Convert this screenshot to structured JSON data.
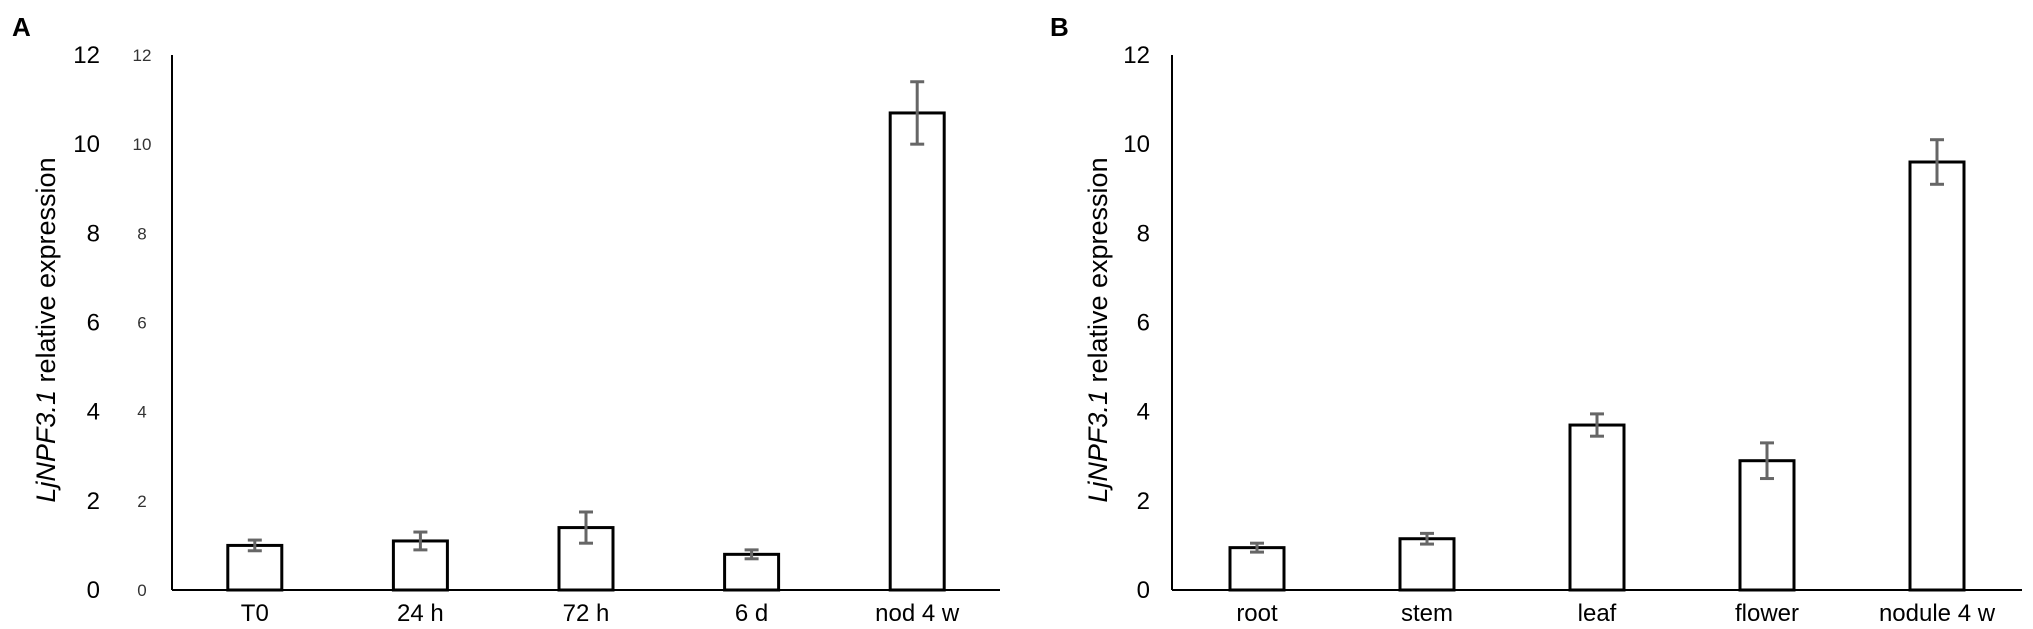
{
  "chart_data": [
    {
      "panel_label": "A",
      "type": "bar",
      "categories": [
        "T0",
        "24 h",
        "72 h",
        "6 d",
        "nod 4 w"
      ],
      "values": [
        1.0,
        1.1,
        1.4,
        0.8,
        10.7
      ],
      "errors": [
        0.12,
        0.2,
        0.35,
        0.1,
        0.7
      ],
      "ylabel_italic": "LjNPF3.1",
      "ylabel_rest": " relative expression",
      "ylim": [
        0,
        12
      ],
      "yticks": [
        "0",
        "2",
        "4",
        "6",
        "8",
        "10",
        "12"
      ],
      "yticks_inner": [
        "0",
        "2",
        "4",
        "6",
        "8",
        "10",
        "12"
      ],
      "grid": false
    },
    {
      "panel_label": "B",
      "type": "bar",
      "categories": [
        "root",
        "stem",
        "leaf",
        "flower",
        "nodule 4 w"
      ],
      "values": [
        0.95,
        1.15,
        3.7,
        2.9,
        9.6
      ],
      "errors": [
        0.1,
        0.12,
        0.25,
        0.4,
        0.5
      ],
      "ylabel_italic": "LjNPF3.1",
      "ylabel_rest": " relative expression",
      "ylim": [
        0,
        12
      ],
      "yticks": [
        "0",
        "2",
        "4",
        "6",
        "8",
        "10",
        "12"
      ],
      "grid": false
    }
  ],
  "colors": {
    "bar_fill": "#ffffff",
    "bar_stroke": "#000000",
    "error_bar": "#666666"
  }
}
